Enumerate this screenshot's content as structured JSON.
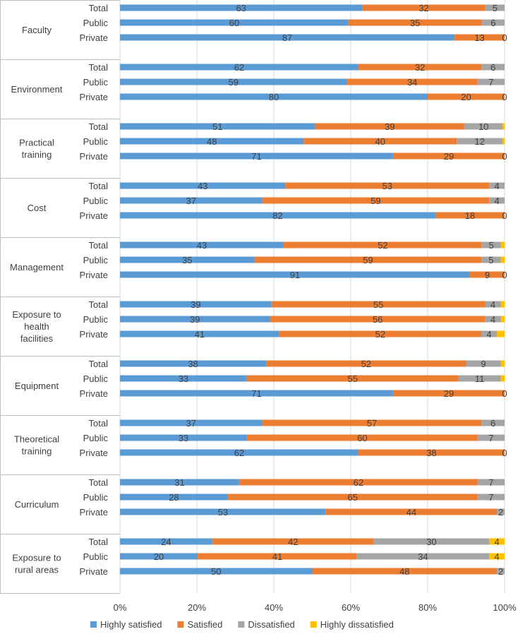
{
  "chart_data": {
    "type": "bar",
    "orientation": "horizontal-stacked-100",
    "series_names": [
      "Highly satisfied",
      "Satisfied",
      "Dissatisfied",
      "Highly dissatisfied"
    ],
    "colors": [
      "#5B9BD5",
      "#ED7D31",
      "#A5A5A5",
      "#FFC000"
    ],
    "xticks": [
      "0%",
      "20%",
      "40%",
      "60%",
      "80%",
      "100%"
    ],
    "xlim": [
      0,
      100
    ],
    "groups": [
      {
        "name": [
          "Faculty"
        ],
        "rows": [
          {
            "label": "Total",
            "values": [
              63,
              32,
              5,
              0
            ]
          },
          {
            "label": "Public",
            "values": [
              60,
              35,
              6,
              0
            ]
          },
          {
            "label": "Private",
            "values": [
              87,
              13,
              0,
              0
            ]
          }
        ]
      },
      {
        "name": [
          "Environment"
        ],
        "rows": [
          {
            "label": "Total",
            "values": [
              62,
              32,
              6,
              0
            ]
          },
          {
            "label": "Public",
            "values": [
              59,
              34,
              7,
              0
            ]
          },
          {
            "label": "Private",
            "values": [
              80,
              20,
              0,
              0
            ]
          }
        ]
      },
      {
        "name": [
          "Practical",
          "training"
        ],
        "rows": [
          {
            "label": "Total",
            "values": [
              51,
              39,
              10,
              0.5
            ]
          },
          {
            "label": "Public",
            "values": [
              48,
              40,
              12,
              0.5
            ]
          },
          {
            "label": "Private",
            "values": [
              71,
              29,
              0,
              0
            ]
          }
        ]
      },
      {
        "name": [
          "Cost"
        ],
        "rows": [
          {
            "label": "Total",
            "values": [
              43,
              53,
              4,
              0
            ]
          },
          {
            "label": "Public",
            "values": [
              37,
              59,
              4,
              0
            ]
          },
          {
            "label": "Private",
            "values": [
              82,
              18,
              0,
              0
            ]
          }
        ]
      },
      {
        "name": [
          "Management"
        ],
        "rows": [
          {
            "label": "Total",
            "values": [
              43,
              52,
              5,
              1
            ]
          },
          {
            "label": "Public",
            "values": [
              35,
              59,
              5,
              1
            ]
          },
          {
            "label": "Private",
            "values": [
              91,
              9,
              0,
              0
            ]
          }
        ]
      },
      {
        "name": [
          "Exposure to",
          "health",
          "facilities"
        ],
        "rows": [
          {
            "label": "Total",
            "values": [
              39,
              55,
              4,
              1
            ]
          },
          {
            "label": "Public",
            "values": [
              39,
              56,
              4,
              1
            ]
          },
          {
            "label": "Private",
            "values": [
              41,
              52,
              4,
              2
            ]
          }
        ]
      },
      {
        "name": [
          "Equipment"
        ],
        "rows": [
          {
            "label": "Total",
            "values": [
              38,
              52,
              9,
              1
            ]
          },
          {
            "label": "Public",
            "values": [
              33,
              55,
              11,
              1
            ]
          },
          {
            "label": "Private",
            "values": [
              71,
              29,
              0,
              0
            ]
          }
        ]
      },
      {
        "name": [
          "Theoretical",
          "training"
        ],
        "rows": [
          {
            "label": "Total",
            "values": [
              37,
              57,
              6,
              0
            ]
          },
          {
            "label": "Public",
            "values": [
              33,
              60,
              7,
              0
            ]
          },
          {
            "label": "Private",
            "values": [
              62,
              38,
              0,
              0
            ]
          }
        ]
      },
      {
        "name": [
          "Curriculum"
        ],
        "rows": [
          {
            "label": "Total",
            "values": [
              31,
              62,
              7,
              0
            ]
          },
          {
            "label": "Public",
            "values": [
              28,
              65,
              7,
              0
            ]
          },
          {
            "label": "Private",
            "values": [
              53,
              44,
              2,
              0
            ]
          }
        ]
      },
      {
        "name": [
          "Exposure to",
          "rural areas"
        ],
        "rows": [
          {
            "label": "Total",
            "values": [
              24,
              42,
              30,
              4
            ]
          },
          {
            "label": "Public",
            "values": [
              20,
              41,
              34,
              4
            ]
          },
          {
            "label": "Private",
            "values": [
              50,
              48,
              2,
              0
            ]
          }
        ]
      }
    ]
  }
}
